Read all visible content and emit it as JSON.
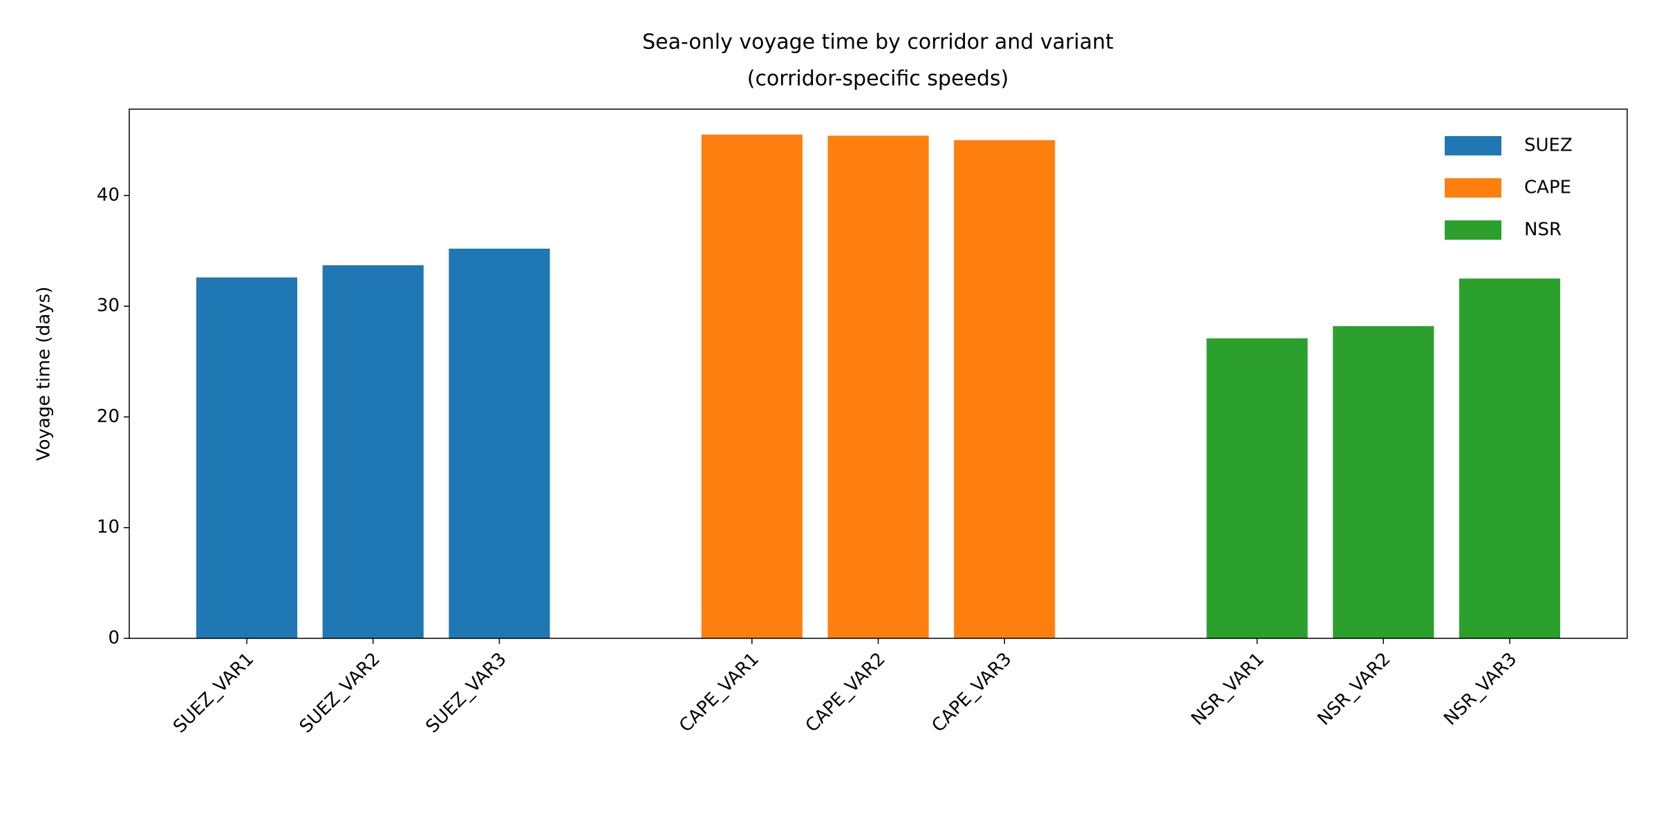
{
  "chart_data": {
    "type": "bar",
    "title": "Sea-only voyage time by corridor and variant",
    "subtitle": "(corridor-specific speeds)",
    "y_label": "Voyage time (days)",
    "categories": [
      "SUEZ_VAR1",
      "SUEZ_VAR2",
      "SUEZ_VAR3",
      null,
      "CAPE_VAR1",
      "CAPE_VAR2",
      "CAPE_VAR3",
      null,
      "NSR_VAR1",
      "NSR_VAR2",
      "NSR_VAR3"
    ],
    "series": [
      {
        "name": "SUEZ",
        "color": "#1f77b4",
        "values": [
          32.6,
          33.7,
          35.2,
          null,
          null,
          null,
          null,
          null,
          null,
          null,
          null
        ]
      },
      {
        "name": "CAPE",
        "color": "#ff7f0e",
        "values": [
          null,
          null,
          null,
          null,
          45.5,
          45.4,
          45.0,
          null,
          null,
          null,
          null
        ]
      },
      {
        "name": "NSR",
        "color": "#2ca02c",
        "values": [
          null,
          null,
          null,
          null,
          null,
          null,
          null,
          null,
          27.1,
          28.2,
          32.5
        ]
      }
    ],
    "ylim": [
      0,
      47.8
    ],
    "yticks": [
      0,
      10,
      20,
      30,
      40
    ],
    "grid": false,
    "legend": "upper right"
  }
}
